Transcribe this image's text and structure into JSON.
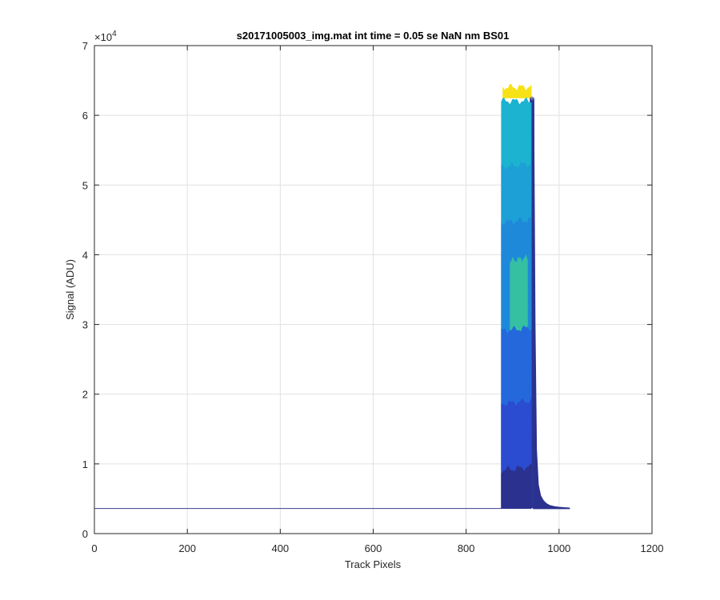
{
  "chart_data": {
    "type": "area",
    "title": "s20171005003_img.mat int time = 0.05 se  NaN nm BS01",
    "xlabel": "Track Pixels",
    "ylabel": "Signal (ADU)",
    "xlim": [
      0,
      1200
    ],
    "ylim": [
      0,
      70000
    ],
    "x_ticks": [
      0,
      200,
      400,
      600,
      800,
      1000,
      1200
    ],
    "x_tick_labels": [
      "0",
      "200",
      "400",
      "600",
      "800",
      "1000",
      "1200"
    ],
    "y_ticks": [
      0,
      10000,
      20000,
      30000,
      40000,
      50000,
      60000,
      70000
    ],
    "y_tick_labels": [
      "0",
      "1",
      "2",
      "3",
      "4",
      "5",
      "6",
      "7"
    ],
    "y_exponent_label": "×10",
    "y_exponent_power": "4",
    "grid": true,
    "legend": "none",
    "baseline_value": 3600,
    "baseline_range": [
      1,
      876
    ],
    "tail": {
      "x": [
        945,
        948,
        951,
        955,
        960,
        966,
        972,
        980,
        990,
        1000,
        1010,
        1022
      ],
      "y": [
        62000,
        30000,
        12000,
        7000,
        5400,
        4700,
        4300,
        4000,
        3850,
        3750,
        3700,
        3650
      ]
    },
    "series": [
      {
        "color": "#f6e216",
        "x_range": [
          879,
          940
        ],
        "peak": 64000,
        "low": 62500
      },
      {
        "color": "#2a3592",
        "x_range": [
          937,
          946
        ],
        "peak": 62200,
        "low": 3700
      },
      {
        "color": "#1bb3cf",
        "x_range": [
          876,
          940
        ],
        "peak": 62000,
        "low": 3600
      },
      {
        "color": "#1da0d6",
        "x_range": [
          876,
          940
        ],
        "peak": 53000,
        "low": 3600
      },
      {
        "color": "#1f89d9",
        "x_range": [
          876,
          940
        ],
        "peak": 45000,
        "low": 3600
      },
      {
        "color": "#35c0a2",
        "x_range": [
          895,
          932
        ],
        "peak": 39500,
        "low": 29000
      },
      {
        "color": "#2468dc",
        "x_range": [
          876,
          940
        ],
        "peak": 29500,
        "low": 3600
      },
      {
        "color": "#2b4bd0",
        "x_range": [
          876,
          940
        ],
        "peak": 19000,
        "low": 3600
      },
      {
        "color": "#2b318f",
        "x_range": [
          876,
          940
        ],
        "peak": 9500,
        "low": 3600
      }
    ]
  }
}
